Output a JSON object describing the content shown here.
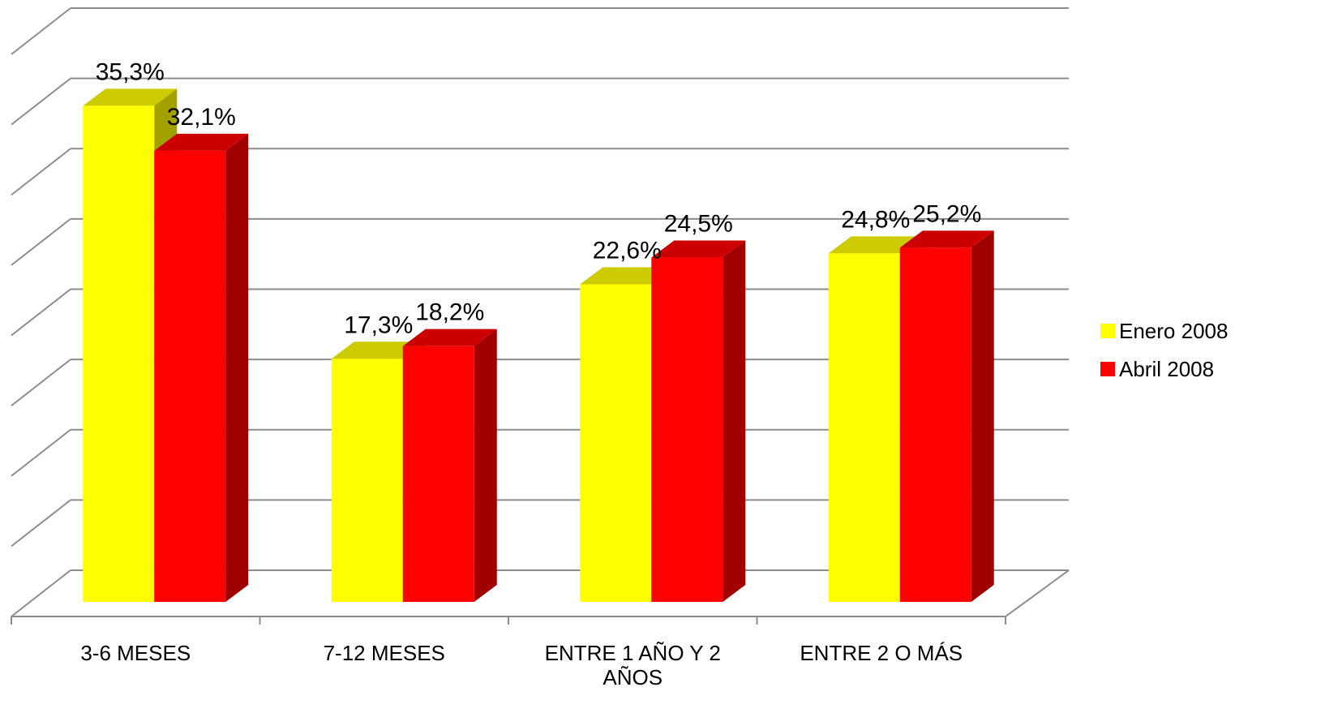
{
  "chart_data": {
    "type": "bar3d",
    "categories": [
      "3-6 MESES",
      "7-12 MESES",
      "ENTRE 1 AÑO Y 2 AÑOS",
      "ENTRE 2 O MÁS"
    ],
    "series": [
      {
        "name": "Enero 2008",
        "color": "#ffff00",
        "values": [
          35.3,
          17.3,
          22.6,
          24.8
        ],
        "value_labels": [
          "35,3%",
          "17,3%",
          "22,6%",
          "24,8%"
        ]
      },
      {
        "name": "Abril 2008",
        "color": "#ff0000",
        "values": [
          32.1,
          18.2,
          24.5,
          25.2
        ],
        "value_labels": [
          "32,1%",
          "18,2%",
          "24,5%",
          "25,2%"
        ]
      }
    ],
    "ylim": [
      0,
      40
    ],
    "yticks": [
      0,
      5,
      10,
      15,
      20,
      25,
      30,
      35,
      40
    ],
    "grid": true,
    "legend": "right"
  }
}
